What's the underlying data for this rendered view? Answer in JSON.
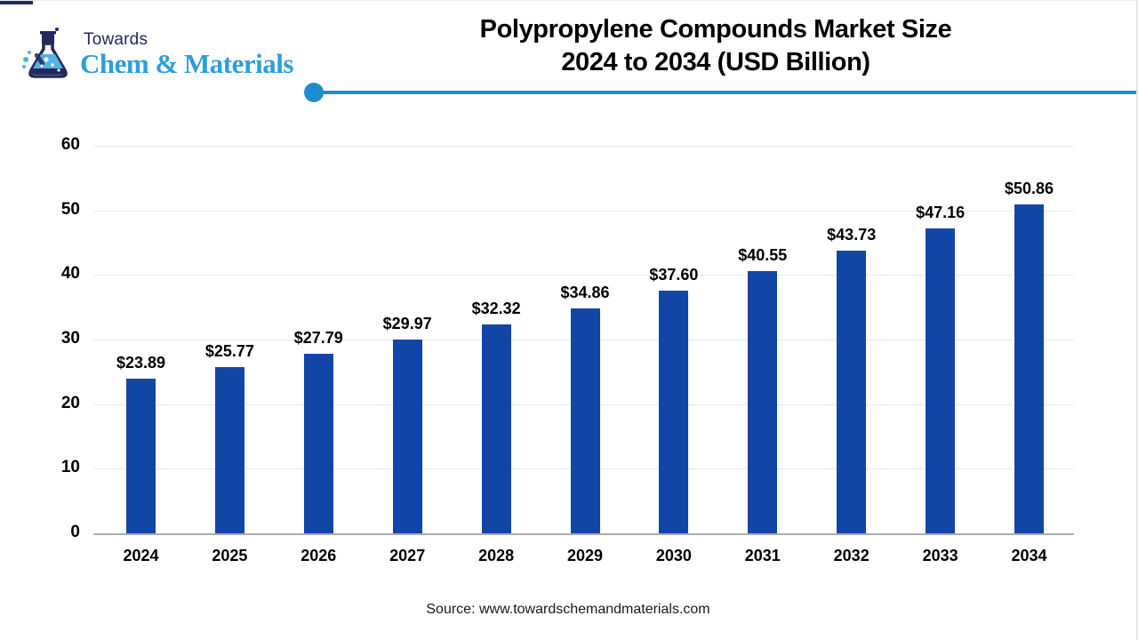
{
  "logo": {
    "line1": "Towards",
    "line2": "Chem & Materials",
    "navy": "#23295c",
    "light_blue": "#2e9ed9"
  },
  "header": {
    "title_line1": "Polypropylene Compounds Market Size",
    "title_line2": "2024 to 2034 (USD Billion)",
    "accent_line_color": "#1f8ccf"
  },
  "chart_data": {
    "type": "bar",
    "title": "Polypropylene Compounds Market Size 2024 to 2034 (USD Billion)",
    "categories": [
      "2024",
      "2025",
      "2026",
      "2027",
      "2028",
      "2029",
      "2030",
      "2031",
      "2032",
      "2033",
      "2034"
    ],
    "values": [
      23.89,
      25.77,
      27.79,
      29.97,
      32.32,
      34.86,
      37.6,
      40.55,
      43.73,
      47.16,
      50.86
    ],
    "value_labels": [
      "$23.89",
      "$25.77",
      "$27.79",
      "$29.97",
      "$32.32",
      "$34.86",
      "$37.60",
      "$40.55",
      "$43.73",
      "$47.16",
      "$50.86"
    ],
    "xlabel": "",
    "ylabel": "",
    "ylim": [
      0,
      60
    ],
    "yticks": [
      0,
      10,
      20,
      30,
      40,
      50,
      60
    ],
    "grid": true,
    "legend": "none",
    "bar_color": "#1146a6"
  },
  "footer": {
    "source": "Source: www.towardschemandmaterials.com"
  }
}
